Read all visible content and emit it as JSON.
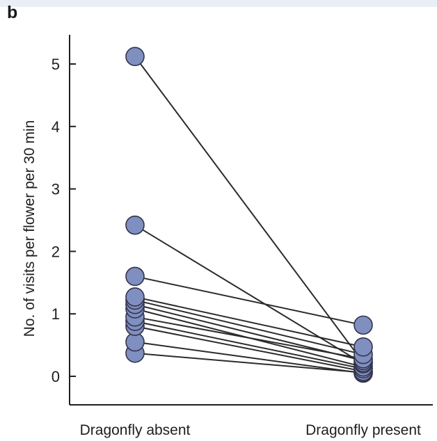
{
  "panel_label": "b",
  "chart_data": {
    "type": "line",
    "title": "",
    "xlabel": "",
    "ylabel": "No. of visits per flower per 30 min",
    "categories": [
      "Dragonfly absent",
      "Dragonfly present"
    ],
    "ylim": [
      -0.35,
      5.5
    ],
    "yticks": [
      0,
      1,
      2,
      3,
      4,
      5
    ],
    "grid": false,
    "legend": "none",
    "colors": {
      "marker_fill": "#7f8fbf",
      "marker_stroke": "#33334d",
      "line": "#2b2b2b",
      "axis": "#1e1e1e"
    },
    "series": [
      {
        "values": [
          5.12,
          0.22
        ]
      },
      {
        "values": [
          2.42,
          0.2
        ]
      },
      {
        "values": [
          1.6,
          0.82
        ]
      },
      {
        "values": [
          1.27,
          0.47
        ]
      },
      {
        "values": [
          1.22,
          0.35
        ]
      },
      {
        "values": [
          1.15,
          0.25
        ]
      },
      {
        "values": [
          1.08,
          0.15
        ]
      },
      {
        "values": [
          0.95,
          0.28
        ]
      },
      {
        "values": [
          0.88,
          0.12
        ]
      },
      {
        "values": [
          0.8,
          0.08
        ]
      },
      {
        "values": [
          0.55,
          0.05
        ]
      },
      {
        "values": [
          0.37,
          0.06
        ]
      }
    ]
  }
}
